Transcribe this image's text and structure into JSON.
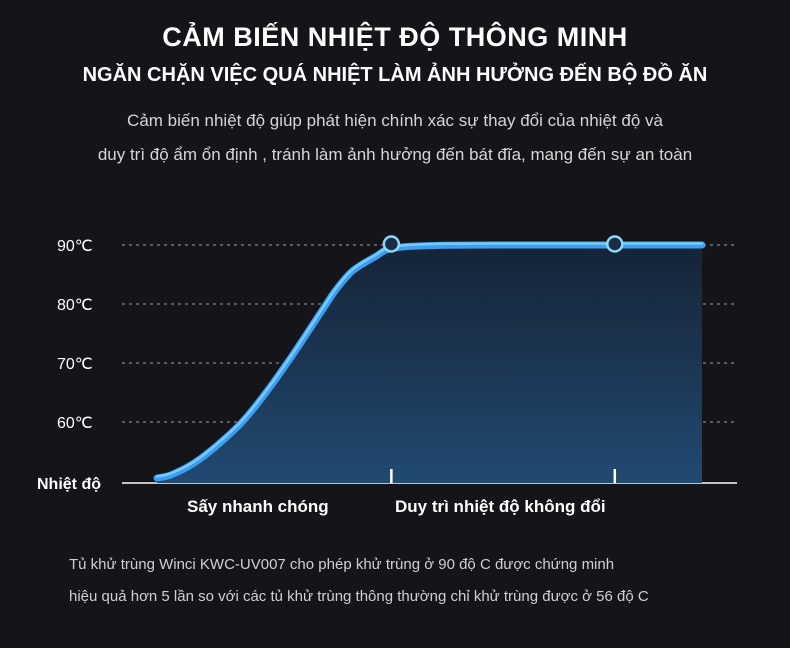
{
  "header": {
    "title": "CẢM BIẾN NHIỆT ĐỘ THÔNG MINH",
    "subtitle": "NGĂN CHẶN VIỆC QUÁ NHIỆT LÀM ẢNH HƯỞNG ĐẾN BỘ ĐỒ ĂN",
    "description": [
      "Cảm biến nhiệt độ giúp phát hiện chính xác sự thay đổi của nhiệt độ và",
      "duy trì độ ẩm ổn định , tránh làm ảnh hưởng đến bát đĩa, mang đến sự an toàn"
    ]
  },
  "chart_data": {
    "type": "area",
    "ylabel": "Nhiệt độ",
    "y_ticks": [
      "60℃",
      "70℃",
      "80℃",
      "90℃"
    ],
    "y_tick_values": [
      60,
      70,
      80,
      90
    ],
    "ylim": [
      50,
      90
    ],
    "phases": [
      "Sấy nhanh chóng",
      "Duy trì nhiệt độ không đổi"
    ],
    "series": [
      {
        "x": [
          0,
          0.03,
          0.08,
          0.15,
          0.2,
          0.25,
          0.3,
          0.33,
          0.36,
          0.4,
          0.43,
          0.5,
          0.65,
          0.8,
          1.0
        ],
        "values": [
          50.5,
          51.2,
          53.8,
          59.4,
          65.0,
          71.5,
          78.5,
          82.6,
          85.7,
          88.0,
          89.4,
          89.9,
          90.0,
          90.0,
          90.0
        ]
      }
    ],
    "markers_x": [
      0.43,
      0.84
    ],
    "grid": true,
    "colors": {
      "line": "#3d9df2",
      "line_highlight": "#7fd3f7",
      "fill_top": "#1b3d5c",
      "fill_bottom": "#234a70",
      "grid": "#9aa0aa"
    }
  },
  "footer": [
    "Tủ khử trùng Winci KWC-UV007 cho phép khử trùng ở 90 độ C được chứng minh",
    "hiệu quả hơn 5 lần so với các tủ khử trùng thông thường chỉ khử trùng được ở 56 độ C"
  ]
}
